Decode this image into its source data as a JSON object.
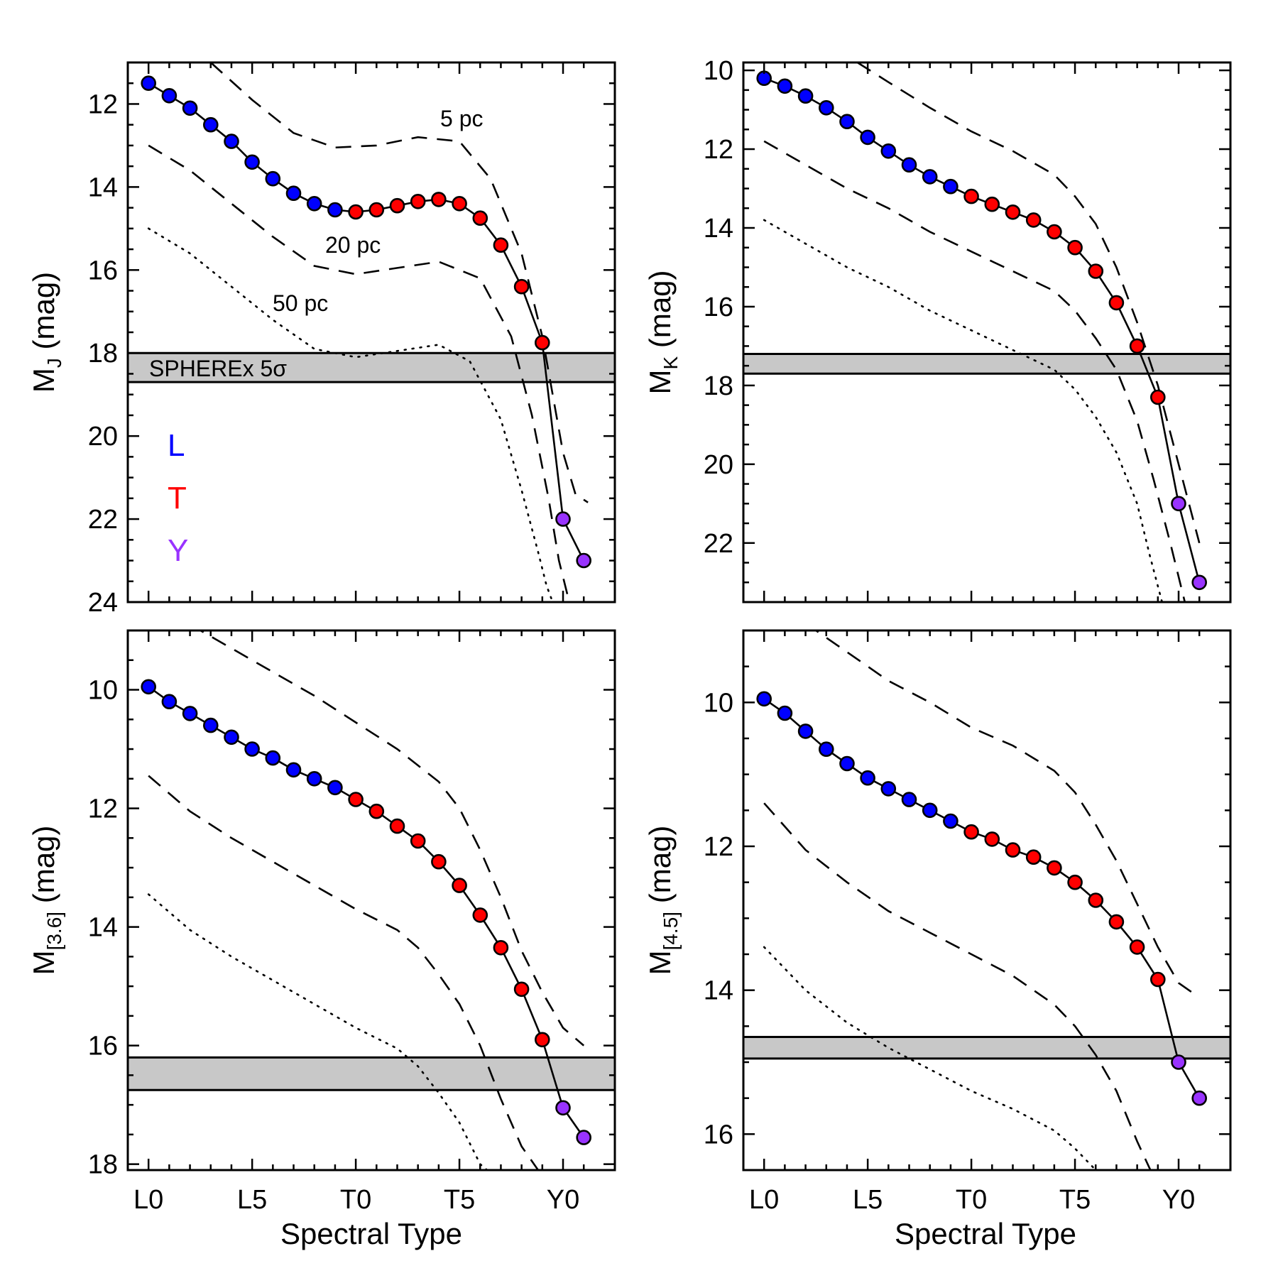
{
  "figure": {
    "xlabel": "Spectral Type",
    "x_tick_labels": [
      "L0",
      "L5",
      "T0",
      "T5",
      "Y0"
    ],
    "x_tick_values": [
      0,
      5,
      10,
      15,
      20
    ],
    "legend": [
      {
        "label": "L",
        "color": "#0000ff"
      },
      {
        "label": "T",
        "color": "#ff0000"
      },
      {
        "label": "Y",
        "color": "#9933ff"
      }
    ],
    "band_color": "#c8c8c8"
  },
  "chart_data": [
    {
      "type": "line",
      "panel": "top-left",
      "ylabel_main": "M",
      "ylabel_sub": "J",
      "ylabel_unit": "(mag)",
      "xlim": [
        -1,
        22.5
      ],
      "ylim": [
        24.0,
        11.0
      ],
      "y_ticks": [
        12,
        14,
        16,
        18,
        20,
        22,
        24
      ],
      "x": [
        0,
        1,
        2,
        3,
        4,
        5,
        6,
        7,
        8,
        9,
        10,
        11,
        12,
        13,
        14,
        15,
        16,
        17,
        18,
        19,
        20,
        21
      ],
      "y": [
        11.5,
        11.8,
        12.1,
        12.5,
        12.9,
        13.4,
        13.8,
        14.15,
        14.4,
        14.55,
        14.6,
        14.55,
        14.45,
        14.35,
        14.3,
        14.4,
        14.75,
        15.4,
        16.4,
        17.75,
        22.0,
        23.0
      ],
      "point_colors": [
        "L",
        "L",
        "L",
        "L",
        "L",
        "L",
        "L",
        "L",
        "L",
        "L",
        "T",
        "T",
        "T",
        "T",
        "T",
        "T",
        "T",
        "T",
        "T",
        "T",
        "Y",
        "Y"
      ],
      "distance_curves": [
        {
          "label": "5 pc",
          "style": "dashed",
          "x": [
            3,
            5,
            7,
            9,
            11,
            13,
            15,
            16.5,
            18,
            19,
            19.5,
            20,
            20.6,
            21.2
          ],
          "y": [
            11.0,
            11.9,
            12.7,
            13.05,
            13.0,
            12.8,
            12.9,
            13.8,
            15.6,
            17.6,
            19.0,
            20.4,
            21.4,
            21.6
          ]
        },
        {
          "label": "20 pc",
          "style": "dashed",
          "x": [
            0,
            2,
            4,
            6,
            8,
            10,
            12,
            14,
            16,
            17.5,
            18.5,
            19.3,
            19.8,
            20.3
          ],
          "y": [
            13.0,
            13.6,
            14.4,
            15.2,
            15.9,
            16.1,
            15.95,
            15.8,
            16.2,
            17.6,
            19.5,
            21.5,
            23.0,
            24.0
          ]
        },
        {
          "label": "50 pc",
          "style": "dotted",
          "x": [
            0,
            2,
            4,
            6,
            8,
            10,
            12,
            14,
            15.5,
            17,
            18,
            18.8,
            19.2,
            19.5
          ],
          "y": [
            15.0,
            15.6,
            16.4,
            17.2,
            17.9,
            18.1,
            17.95,
            17.8,
            18.2,
            19.6,
            21.3,
            22.8,
            23.6,
            24.0
          ]
        }
      ],
      "band": {
        "y_top": 18.0,
        "y_bottom": 18.7,
        "label": "SPHEREx 5σ"
      },
      "annotations": [
        "5 pc",
        "20 pc",
        "50 pc"
      ]
    },
    {
      "type": "line",
      "panel": "top-right",
      "ylabel_main": "M",
      "ylabel_sub": "K",
      "ylabel_unit": "(mag)",
      "xlim": [
        -1,
        22.5
      ],
      "ylim": [
        23.5,
        9.8
      ],
      "y_ticks": [
        10,
        12,
        14,
        16,
        18,
        20,
        22
      ],
      "x": [
        0,
        1,
        2,
        3,
        4,
        5,
        6,
        7,
        8,
        9,
        10,
        11,
        12,
        13,
        14,
        15,
        16,
        17,
        18,
        19,
        20,
        21
      ],
      "y": [
        10.2,
        10.4,
        10.65,
        10.95,
        11.3,
        11.7,
        12.05,
        12.4,
        12.7,
        12.95,
        13.2,
        13.4,
        13.6,
        13.8,
        14.1,
        14.5,
        15.1,
        15.9,
        17.0,
        18.3,
        21.0,
        23.0
      ],
      "point_colors": [
        "L",
        "L",
        "L",
        "L",
        "L",
        "L",
        "L",
        "L",
        "L",
        "L",
        "T",
        "T",
        "T",
        "T",
        "T",
        "T",
        "T",
        "T",
        "T",
        "T",
        "Y",
        "Y"
      ],
      "distance_curves": [
        {
          "label": "5 pc",
          "style": "dashed",
          "x": [
            4.5,
            6,
            8,
            10,
            12,
            14,
            15,
            16,
            17,
            18,
            19,
            20,
            21
          ],
          "y": [
            9.8,
            10.3,
            10.95,
            11.55,
            12.05,
            12.65,
            13.2,
            13.9,
            15.0,
            16.4,
            18.0,
            20.0,
            22.0
          ]
        },
        {
          "label": "20 pc",
          "style": "dashed",
          "x": [
            0,
            2,
            4,
            6,
            8,
            10,
            12,
            14,
            15,
            16,
            17,
            18,
            18.8,
            19.6,
            20.3
          ],
          "y": [
            11.8,
            12.4,
            13.0,
            13.5,
            14.1,
            14.6,
            15.1,
            15.6,
            16.1,
            16.8,
            17.6,
            18.9,
            20.4,
            22.0,
            23.5
          ]
        },
        {
          "label": "50 pc",
          "style": "dotted",
          "x": [
            0,
            2,
            4,
            6,
            8,
            10,
            12,
            14,
            15,
            16,
            17,
            18,
            18.6,
            19.2
          ],
          "y": [
            13.8,
            14.4,
            15.0,
            15.5,
            16.1,
            16.6,
            17.1,
            17.6,
            18.1,
            18.8,
            19.7,
            21.0,
            22.3,
            23.5
          ]
        }
      ],
      "band": {
        "y_top": 17.2,
        "y_bottom": 17.7,
        "label": ""
      },
      "annotations": []
    },
    {
      "type": "line",
      "panel": "bottom-left",
      "ylabel_main": "M",
      "ylabel_sub": "[3.6]",
      "ylabel_unit": "(mag)",
      "xlim": [
        -1,
        22.5
      ],
      "ylim": [
        18.1,
        9.0
      ],
      "y_ticks": [
        10,
        12,
        14,
        16,
        18
      ],
      "x": [
        0,
        1,
        2,
        3,
        4,
        5,
        6,
        7,
        8,
        9,
        10,
        11,
        12,
        13,
        14,
        15,
        16,
        17,
        18,
        19,
        20,
        21
      ],
      "y": [
        9.95,
        10.2,
        10.4,
        10.6,
        10.8,
        11.0,
        11.15,
        11.35,
        11.5,
        11.65,
        11.85,
        12.05,
        12.3,
        12.55,
        12.9,
        13.3,
        13.8,
        14.35,
        15.05,
        15.9,
        17.05,
        17.55
      ],
      "point_colors": [
        "L",
        "L",
        "L",
        "L",
        "L",
        "L",
        "L",
        "L",
        "L",
        "L",
        "T",
        "T",
        "T",
        "T",
        "T",
        "T",
        "T",
        "T",
        "T",
        "T",
        "Y",
        "Y"
      ],
      "distance_curves": [
        {
          "label": "5 pc",
          "style": "dashed",
          "x": [
            2,
            4,
            6,
            8,
            10,
            12,
            14,
            15,
            16,
            17,
            18,
            19,
            20,
            21
          ],
          "y": [
            8.9,
            9.3,
            9.7,
            10.1,
            10.55,
            11.0,
            11.55,
            12.0,
            12.7,
            13.5,
            14.4,
            15.1,
            15.7,
            16.0
          ]
        },
        {
          "label": "20 pc",
          "style": "dashed",
          "x": [
            0,
            2,
            4,
            6,
            8,
            10,
            12,
            13,
            14,
            15,
            16,
            17,
            18,
            19
          ],
          "y": [
            11.45,
            12.05,
            12.5,
            12.9,
            13.3,
            13.7,
            14.05,
            14.35,
            14.8,
            15.3,
            16.0,
            16.9,
            17.7,
            18.2
          ]
        },
        {
          "label": "50 pc",
          "style": "dotted",
          "x": [
            0,
            2,
            4,
            6,
            8,
            10,
            12,
            13,
            14,
            15,
            16,
            17
          ],
          "y": [
            13.45,
            14.05,
            14.5,
            14.9,
            15.3,
            15.7,
            16.05,
            16.35,
            16.8,
            17.3,
            18.0,
            18.3
          ]
        }
      ],
      "band": {
        "y_top": 16.2,
        "y_bottom": 16.75,
        "label": ""
      },
      "annotations": []
    },
    {
      "type": "line",
      "panel": "bottom-right",
      "ylabel_main": "M",
      "ylabel_sub": "[4.5]",
      "ylabel_unit": "(mag)",
      "xlim": [
        -1,
        22.5
      ],
      "ylim": [
        16.5,
        9.0
      ],
      "y_ticks": [
        10,
        12,
        14,
        16
      ],
      "x": [
        0,
        1,
        2,
        3,
        4,
        5,
        6,
        7,
        8,
        9,
        10,
        11,
        12,
        13,
        14,
        15,
        16,
        17,
        18,
        19,
        20,
        21
      ],
      "y": [
        9.95,
        10.15,
        10.4,
        10.65,
        10.85,
        11.05,
        11.2,
        11.35,
        11.5,
        11.65,
        11.8,
        11.9,
        12.05,
        12.15,
        12.3,
        12.5,
        12.75,
        13.05,
        13.4,
        13.85,
        15.0,
        15.5
      ],
      "point_colors": [
        "L",
        "L",
        "L",
        "L",
        "L",
        "L",
        "L",
        "L",
        "L",
        "L",
        "T",
        "T",
        "T",
        "T",
        "T",
        "T",
        "T",
        "T",
        "T",
        "T",
        "Y",
        "Y"
      ],
      "distance_curves": [
        {
          "label": "5 pc",
          "style": "dashed",
          "x": [
            2,
            4,
            6,
            8,
            10,
            12,
            14,
            15,
            16,
            17,
            18,
            19,
            20,
            21
          ],
          "y": [
            8.9,
            9.3,
            9.7,
            10.0,
            10.35,
            10.6,
            10.95,
            11.25,
            11.7,
            12.2,
            12.8,
            13.4,
            13.9,
            14.1
          ]
        },
        {
          "label": "20 pc",
          "style": "dashed",
          "x": [
            0,
            2,
            4,
            6,
            8,
            10,
            12,
            14,
            15,
            16,
            17,
            18,
            18.8,
            19.5
          ],
          "y": [
            11.4,
            12.05,
            12.5,
            12.9,
            13.2,
            13.5,
            13.8,
            14.2,
            14.5,
            14.9,
            15.4,
            16.1,
            16.6,
            17.2
          ]
        },
        {
          "label": "50 pc",
          "style": "dotted",
          "x": [
            0,
            2,
            4,
            6,
            8,
            10,
            12,
            14,
            15,
            16,
            17
          ],
          "y": [
            13.4,
            14.0,
            14.45,
            14.8,
            15.1,
            15.4,
            15.65,
            15.95,
            16.2,
            16.5,
            16.6
          ]
        }
      ],
      "band": {
        "y_top": 14.65,
        "y_bottom": 14.95,
        "label": ""
      },
      "annotations": []
    }
  ]
}
